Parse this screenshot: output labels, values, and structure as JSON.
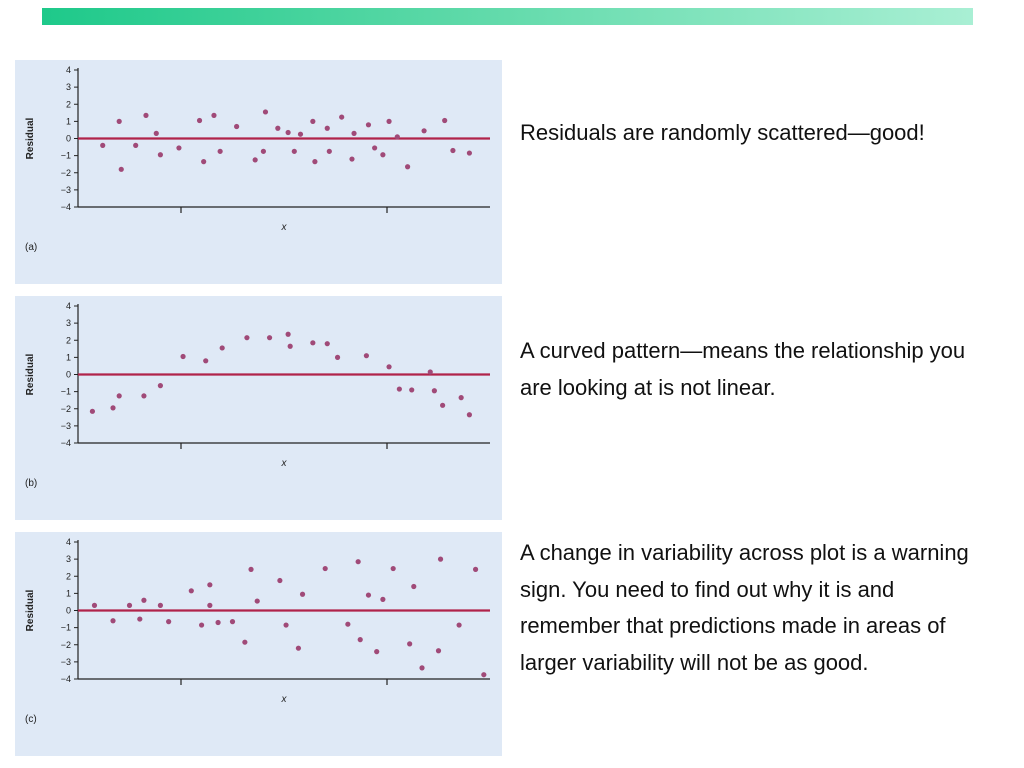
{
  "decor": {
    "accent_gradient": [
      "#1ec98a",
      "#5dd9a8",
      "#a9efd4"
    ],
    "plot_bg": "#dfe9f6",
    "point_color": "#a04a78",
    "zero_line_color": "#b0234a"
  },
  "captions": [
    "Residuals are randomly scattered—good!",
    "A curved pattern—means the relationship you are looking at is not linear.",
    "A change in variability across plot is a warning sign. You need to find out why it is and remember that predictions made in areas of larger variability will not be as good."
  ],
  "chart_data": [
    {
      "type": "scatter",
      "panel_label": "(a)",
      "xlabel": "x",
      "ylabel": "Residual",
      "ylim": [
        -4,
        4
      ],
      "yticks": [
        "4",
        "3",
        "2",
        "1",
        "0",
        "−1",
        "−2",
        "−3",
        "−4"
      ],
      "xlim": [
        0,
        10
      ],
      "xticks": [
        2.5,
        7.5
      ],
      "hline": 0,
      "points": [
        [
          0.6,
          -0.4
        ],
        [
          1.0,
          1.0
        ],
        [
          1.05,
          -1.8
        ],
        [
          1.4,
          -0.4
        ],
        [
          1.65,
          1.35
        ],
        [
          1.9,
          0.3
        ],
        [
          2.0,
          -0.95
        ],
        [
          2.45,
          -0.55
        ],
        [
          2.95,
          1.05
        ],
        [
          3.05,
          -1.35
        ],
        [
          3.3,
          1.35
        ],
        [
          3.45,
          -0.75
        ],
        [
          3.85,
          0.7
        ],
        [
          4.3,
          -1.25
        ],
        [
          4.5,
          -0.75
        ],
        [
          4.55,
          1.55
        ],
        [
          4.85,
          0.6
        ],
        [
          5.1,
          0.35
        ],
        [
          5.25,
          -0.75
        ],
        [
          5.4,
          0.25
        ],
        [
          5.7,
          1.0
        ],
        [
          5.75,
          -1.35
        ],
        [
          6.05,
          0.6
        ],
        [
          6.1,
          -0.75
        ],
        [
          6.4,
          1.25
        ],
        [
          6.65,
          -1.2
        ],
        [
          6.7,
          0.3
        ],
        [
          7.05,
          0.8
        ],
        [
          7.2,
          -0.55
        ],
        [
          7.4,
          -0.95
        ],
        [
          7.55,
          1.0
        ],
        [
          7.75,
          0.1
        ],
        [
          8.0,
          -1.65
        ],
        [
          8.4,
          0.45
        ],
        [
          8.9,
          1.05
        ],
        [
          9.1,
          -0.7
        ],
        [
          9.5,
          -0.85
        ]
      ]
    },
    {
      "type": "scatter",
      "panel_label": "(b)",
      "xlabel": "x",
      "ylabel": "Residual",
      "ylim": [
        -4,
        4
      ],
      "yticks": [
        "4",
        "3",
        "2",
        "1",
        "0",
        "−1",
        "−2",
        "−3",
        "−4"
      ],
      "xlim": [
        0,
        10
      ],
      "xticks": [
        2.5,
        7.5
      ],
      "hline": 0,
      "points": [
        [
          0.35,
          -2.15
        ],
        [
          0.85,
          -1.95
        ],
        [
          1.0,
          -1.25
        ],
        [
          1.6,
          -1.25
        ],
        [
          2.0,
          -0.65
        ],
        [
          2.55,
          1.05
        ],
        [
          3.1,
          0.8
        ],
        [
          3.5,
          1.55
        ],
        [
          4.1,
          2.15
        ],
        [
          4.65,
          2.15
        ],
        [
          5.1,
          2.35
        ],
        [
          5.15,
          1.65
        ],
        [
          5.7,
          1.85
        ],
        [
          6.05,
          1.8
        ],
        [
          6.3,
          1.0
        ],
        [
          7.0,
          1.1
        ],
        [
          7.55,
          0.45
        ],
        [
          7.8,
          -0.85
        ],
        [
          8.1,
          -0.9
        ],
        [
          8.55,
          0.15
        ],
        [
          8.65,
          -0.95
        ],
        [
          8.85,
          -1.8
        ],
        [
          9.3,
          -1.35
        ],
        [
          9.5,
          -2.35
        ]
      ]
    },
    {
      "type": "scatter",
      "panel_label": "(c)",
      "xlabel": "x",
      "ylabel": "Residual",
      "ylim": [
        -4,
        4
      ],
      "yticks": [
        "4",
        "3",
        "2",
        "1",
        "0",
        "−1",
        "−2",
        "−3",
        "−4"
      ],
      "xlim": [
        0,
        10
      ],
      "xticks": [
        2.5,
        7.5
      ],
      "hline": 0,
      "points": [
        [
          0.4,
          0.3
        ],
        [
          0.85,
          -0.6
        ],
        [
          1.25,
          0.3
        ],
        [
          1.5,
          -0.5
        ],
        [
          1.6,
          0.6
        ],
        [
          2.0,
          0.3
        ],
        [
          2.2,
          -0.65
        ],
        [
          2.75,
          1.15
        ],
        [
          3.0,
          -0.85
        ],
        [
          3.2,
          1.5
        ],
        [
          3.2,
          0.3
        ],
        [
          3.4,
          -0.7
        ],
        [
          3.75,
          -0.65
        ],
        [
          4.05,
          -1.85
        ],
        [
          4.2,
          2.4
        ],
        [
          4.35,
          0.55
        ],
        [
          4.9,
          1.75
        ],
        [
          5.05,
          -0.85
        ],
        [
          5.35,
          -2.2
        ],
        [
          5.45,
          0.95
        ],
        [
          6.0,
          2.45
        ],
        [
          6.55,
          -0.8
        ],
        [
          6.8,
          2.85
        ],
        [
          6.85,
          -1.7
        ],
        [
          7.05,
          0.9
        ],
        [
          7.25,
          -2.4
        ],
        [
          7.4,
          0.65
        ],
        [
          7.65,
          2.45
        ],
        [
          8.05,
          -1.95
        ],
        [
          8.15,
          1.4
        ],
        [
          8.35,
          -3.35
        ],
        [
          8.75,
          -2.35
        ],
        [
          8.8,
          3.0
        ],
        [
          9.25,
          -0.85
        ],
        [
          9.65,
          2.4
        ],
        [
          9.85,
          -3.75
        ]
      ]
    }
  ]
}
